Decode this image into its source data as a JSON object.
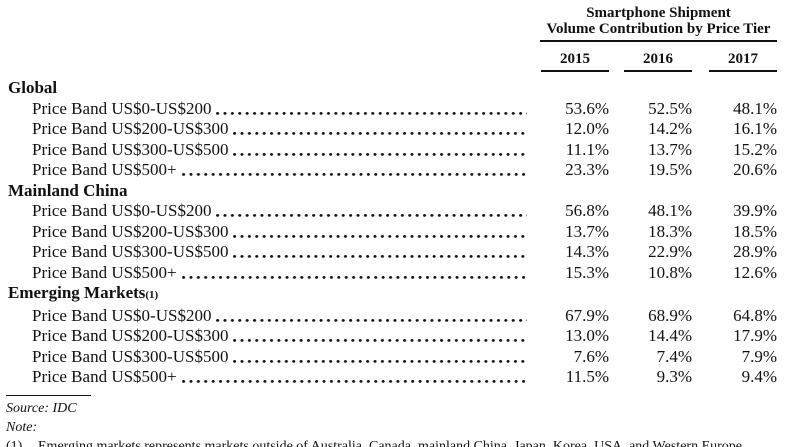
{
  "header": {
    "title_line1": "Smartphone Shipment",
    "title_line2": "Volume Contribution by Price Tier",
    "years": [
      "2015",
      "2016",
      "2017"
    ]
  },
  "table": {
    "sections": [
      {
        "name": "Global",
        "rows": [
          {
            "label": "Price Band US$0-US$200",
            "values": [
              "53.6%",
              "52.5%",
              "48.1%"
            ]
          },
          {
            "label": "Price Band US$200-US$300",
            "values": [
              "12.0%",
              "14.2%",
              "16.1%"
            ]
          },
          {
            "label": "Price Band US$300-US$500",
            "values": [
              "11.1%",
              "13.7%",
              "15.2%"
            ]
          },
          {
            "label": "Price Band US$500+",
            "values": [
              "23.3%",
              "19.5%",
              "20.6%"
            ]
          }
        ]
      },
      {
        "name": "Mainland China",
        "rows": [
          {
            "label": "Price Band US$0-US$200",
            "values": [
              "56.8%",
              "48.1%",
              "39.9%"
            ]
          },
          {
            "label": "Price Band US$200-US$300",
            "values": [
              "13.7%",
              "18.3%",
              "18.5%"
            ]
          },
          {
            "label": "Price Band US$300-US$500",
            "values": [
              "14.3%",
              "22.9%",
              "28.9%"
            ]
          },
          {
            "label": "Price Band US$500+",
            "values": [
              "15.3%",
              "10.8%",
              "12.6%"
            ]
          }
        ]
      },
      {
        "name": "Emerging Markets",
        "name_superscript": "(1)",
        "rows": [
          {
            "label": "Price Band US$0-US$200",
            "values": [
              "67.9%",
              "68.9%",
              "64.8%"
            ]
          },
          {
            "label": "Price Band US$200-US$300",
            "values": [
              "13.0%",
              "14.4%",
              "17.9%"
            ]
          },
          {
            "label": "Price Band US$300-US$500",
            "values": [
              "7.6%",
              "7.4%",
              "7.9%"
            ]
          },
          {
            "label": "Price Band US$500+",
            "values": [
              "11.5%",
              "9.3%",
              "9.4%"
            ]
          }
        ]
      }
    ]
  },
  "footer": {
    "source": "Source: IDC",
    "note_label": "Note:",
    "footnote_marker": "(1)",
    "footnote_text": "Emerging markets represents markets outside of Australia, Canada, mainland China, Japan, Korea, USA, and Western Europe."
  },
  "colors": {
    "text": "#111111",
    "rule": "#111111",
    "background": "#ffffff"
  }
}
